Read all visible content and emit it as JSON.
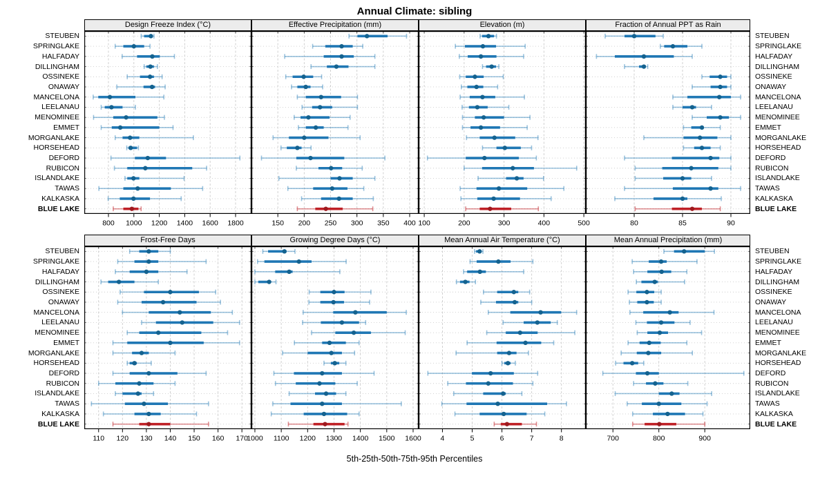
{
  "title": "Annual Climate: sibling",
  "caption": "5th-25th-50th-75th-95th Percentiles",
  "percentile_labels": [
    "5th",
    "25th",
    "50th",
    "75th",
    "95th"
  ],
  "highlight_site": "BLUE LAKE",
  "colors": {
    "series": "#1f77b4",
    "series_dot": "#14628f",
    "series_range": "rgba(31,119,180,0.45)",
    "highlight": "#bf2026",
    "highlight_dot": "#9e1a1f",
    "highlight_range": "rgba(191,32,38,0.5)",
    "grid": "#cbcbcb",
    "strip_bg": "#ececec",
    "border": "#000000"
  },
  "chart_data": {
    "type": "dotplot-interval",
    "note": "horizontal 5th-25th-50th-75th-95th percentile intervals per site; dot = median",
    "layout": {
      "rows": 2,
      "cols": 4,
      "grid": true,
      "legend_position": "none"
    },
    "sites": [
      "STEUBEN",
      "SPRINGLAKE",
      "HALFADAY",
      "DILLINGHAM",
      "OSSINEKE",
      "ONAWAY",
      "MANCELONA",
      "LEELANAU",
      "MENOMINEE",
      "EMMET",
      "MORGANLAKE",
      "HORSEHEAD",
      "DEFORD",
      "RUBICON",
      "ISLANDLAKE",
      "TAWAS",
      "KALKASKA",
      "BLUE LAKE"
    ],
    "panels": [
      {
        "title": "Design Freeze Index (°C)",
        "xlim": [
          610,
          1925
        ],
        "ticks": [
          800,
          1000,
          1200,
          1400,
          1600,
          1800
        ],
        "values": [
          [
            1058,
            1080,
            1134,
            1149,
            1158
          ],
          [
            853,
            917,
            1000,
            1081,
            1127
          ],
          [
            908,
            1025,
            1145,
            1204,
            1319
          ],
          [
            1081,
            1098,
            1130,
            1158,
            1185
          ],
          [
            948,
            1048,
            1127,
            1158,
            1222
          ],
          [
            866,
            1076,
            1143,
            1167,
            1246
          ],
          [
            680,
            720,
            811,
            1012,
            1236
          ],
          [
            743,
            771,
            824,
            911,
            1012
          ],
          [
            683,
            838,
            939,
            1185,
            1240
          ],
          [
            743,
            826,
            893,
            1200,
            1308
          ],
          [
            853,
            911,
            970,
            1043,
            1468
          ],
          [
            944,
            957,
            975,
            1025,
            1036
          ],
          [
            820,
            1008,
            1109,
            1253,
            1834
          ],
          [
            847,
            948,
            1090,
            1459,
            1572
          ],
          [
            930,
            948,
            997,
            1043,
            1395
          ],
          [
            725,
            917,
            1030,
            1291,
            1541
          ],
          [
            798,
            889,
            997,
            1127,
            1372
          ],
          [
            838,
            917,
            984,
            1036,
            1057
          ]
        ]
      },
      {
        "title": "Effective Precipitation (mm)",
        "xlim": [
          100,
          417
        ],
        "ticks": [
          150,
          200,
          250,
          300,
          350,
          400
        ],
        "values": [
          [
            285,
            301,
            319,
            358,
            394
          ],
          [
            216,
            240,
            271,
            292,
            311
          ],
          [
            163,
            237,
            271,
            294,
            334
          ],
          [
            213,
            243,
            261,
            284,
            334
          ],
          [
            165,
            178,
            199,
            217,
            233
          ],
          [
            176,
            187,
            203,
            212,
            235
          ],
          [
            187,
            203,
            232,
            270,
            301
          ],
          [
            196,
            215,
            230,
            253,
            301
          ],
          [
            181,
            193,
            208,
            248,
            287
          ],
          [
            189,
            203,
            222,
            237,
            283
          ],
          [
            141,
            171,
            200,
            246,
            306
          ],
          [
            156,
            167,
            187,
            195,
            213
          ],
          [
            119,
            185,
            212,
            276,
            353
          ],
          [
            185,
            227,
            251,
            272,
            310
          ],
          [
            152,
            250,
            267,
            292,
            334
          ],
          [
            169,
            217,
            253,
            282,
            313
          ],
          [
            195,
            232,
            266,
            292,
            331
          ],
          [
            187,
            221,
            241,
            273,
            330
          ]
        ]
      },
      {
        "title": "Elevation (m)",
        "xlim": [
          86,
          505
        ],
        "ticks": [
          100,
          200,
          300,
          400,
          500
        ],
        "values": [
          [
            240,
            245,
            261,
            275,
            281
          ],
          [
            178,
            202,
            247,
            280,
            353
          ],
          [
            188,
            209,
            242,
            281,
            349
          ],
          [
            246,
            255,
            269,
            280,
            287
          ],
          [
            189,
            204,
            227,
            249,
            298
          ],
          [
            193,
            208,
            231,
            248,
            284
          ],
          [
            190,
            214,
            246,
            278,
            351
          ],
          [
            195,
            212,
            233,
            259,
            312
          ],
          [
            196,
            227,
            249,
            300,
            365
          ],
          [
            196,
            216,
            242,
            290,
            358
          ],
          [
            206,
            239,
            276,
            328,
            385
          ],
          [
            246,
            281,
            302,
            342,
            369
          ],
          [
            108,
            204,
            251,
            337,
            381
          ],
          [
            200,
            245,
            322,
            375,
            482
          ],
          [
            235,
            305,
            332,
            349,
            399
          ],
          [
            190,
            231,
            287,
            358,
            450
          ],
          [
            192,
            233,
            274,
            340,
            418
          ],
          [
            204,
            239,
            265,
            318,
            386
          ]
        ]
      },
      {
        "title": "Fraction of Annual PPT as Rain",
        "xlim": [
          75,
          92
        ],
        "ticks": [
          80,
          85,
          90
        ],
        "values": [
          [
            77,
            79,
            80,
            82.2,
            83
          ],
          [
            82.7,
            83.1,
            84,
            85.5,
            87
          ],
          [
            76.1,
            78,
            81,
            84.1,
            86
          ],
          [
            79,
            80.5,
            81,
            81.2,
            81.4
          ],
          [
            87,
            87.8,
            88.9,
            89.6,
            90
          ],
          [
            86,
            87.9,
            88.9,
            89.6,
            90
          ],
          [
            84,
            85.5,
            88.8,
            90,
            91
          ],
          [
            84,
            85,
            86,
            86.4,
            88
          ],
          [
            86,
            87.5,
            88.9,
            89.8,
            91
          ],
          [
            85.1,
            85.9,
            87,
            87.2,
            88.9
          ],
          [
            81,
            85.1,
            86.8,
            88.6,
            90
          ],
          [
            85.1,
            86.2,
            87,
            87.9,
            88.9
          ],
          [
            79,
            83.9,
            87.9,
            88.8,
            90
          ],
          [
            80.1,
            82.9,
            85.9,
            88.7,
            90
          ],
          [
            80.1,
            83,
            85,
            85.9,
            88
          ],
          [
            79,
            84,
            87.9,
            88.7,
            91
          ],
          [
            78,
            82,
            85,
            85.5,
            89
          ],
          [
            80.1,
            83.9,
            86,
            87,
            88.9
          ]
        ]
      },
      {
        "title": "Frost-Free Days",
        "xlim": [
          104,
          174
        ],
        "ticks": [
          110,
          120,
          130,
          140,
          150,
          160,
          170
        ],
        "values": [
          [
            123,
            127,
            131,
            135,
            140
          ],
          [
            118,
            125,
            131,
            135,
            155
          ],
          [
            117,
            123,
            130,
            135,
            147
          ],
          [
            111,
            114,
            118.5,
            125,
            135
          ],
          [
            119,
            129,
            140,
            152,
            159
          ],
          [
            118,
            128,
            137,
            151,
            161
          ],
          [
            120,
            131,
            144,
            157,
            166
          ],
          [
            128,
            134,
            145,
            158,
            169
          ],
          [
            122,
            127,
            135,
            153,
            164
          ],
          [
            116,
            122,
            140,
            154,
            169
          ],
          [
            116,
            124,
            128,
            131,
            142
          ],
          [
            122,
            123,
            125,
            126,
            132
          ],
          [
            116,
            123,
            131,
            143,
            155
          ],
          [
            110,
            117,
            127,
            133,
            142
          ],
          [
            117,
            120,
            126.5,
            128,
            133
          ],
          [
            107,
            121,
            129,
            139,
            156
          ],
          [
            112,
            125,
            131,
            136,
            151
          ],
          [
            116,
            127,
            131,
            140,
            156
          ]
        ]
      },
      {
        "title": "Growing Degree Days (°C)",
        "xlim": [
          987,
          1621
        ],
        "ticks": [
          1000,
          1100,
          1200,
          1300,
          1400,
          1500,
          1600
        ],
        "values": [
          [
            1030,
            1050,
            1112,
            1120,
            1152
          ],
          [
            1010,
            1036,
            1167,
            1215,
            1346
          ],
          [
            1000,
            1077,
            1130,
            1143,
            1322
          ],
          [
            1000,
            1013,
            1054,
            1061,
            1080
          ],
          [
            1206,
            1248,
            1300,
            1340,
            1440
          ],
          [
            1205,
            1248,
            1298,
            1338,
            1435
          ],
          [
            1183,
            1297,
            1381,
            1500,
            1574
          ],
          [
            1181,
            1250,
            1330,
            1395,
            1420
          ],
          [
            1215,
            1305,
            1375,
            1440,
            1570
          ],
          [
            1150,
            1255,
            1283,
            1345,
            1395
          ],
          [
            1105,
            1200,
            1290,
            1330,
            1378
          ],
          [
            1262,
            1288,
            1303,
            1320,
            1345
          ],
          [
            1072,
            1148,
            1255,
            1330,
            1452
          ],
          [
            1078,
            1155,
            1245,
            1305,
            1388
          ],
          [
            1130,
            1228,
            1270,
            1308,
            1345
          ],
          [
            1068,
            1135,
            1255,
            1330,
            1555
          ],
          [
            1062,
            1185,
            1262,
            1350,
            1395
          ],
          [
            1127,
            1222,
            1266,
            1340,
            1353
          ]
        ]
      },
      {
        "title": "Mean Annual Air Temperature (°C)",
        "xlim": [
          3.2,
          8.82
        ],
        "ticks": [
          4,
          5,
          6,
          7,
          8
        ],
        "values": [
          [
            5.08,
            5.13,
            5.25,
            5.31,
            5.36
          ],
          [
            4.93,
            5.15,
            5.88,
            6.29,
            7.04
          ],
          [
            4.71,
            4.83,
            5.26,
            5.46,
            6.73
          ],
          [
            4.47,
            4.59,
            4.77,
            4.91,
            5.11
          ],
          [
            5.38,
            5.84,
            6.4,
            6.55,
            6.93
          ],
          [
            5.29,
            5.8,
            6.43,
            6.55,
            7.0
          ],
          [
            5.54,
            6.28,
            7.3,
            7.99,
            8.51
          ],
          [
            6.04,
            6.73,
            7.19,
            7.64,
            7.86
          ],
          [
            5.49,
            6.13,
            6.61,
            7.2,
            8.45
          ],
          [
            4.83,
            5.82,
            6.79,
            7.32,
            7.74
          ],
          [
            4.46,
            5.84,
            6.24,
            6.49,
            6.89
          ],
          [
            6.0,
            6.08,
            6.2,
            6.29,
            6.45
          ],
          [
            3.51,
            4.99,
            5.62,
            6.4,
            7.2
          ],
          [
            4.18,
            4.79,
            5.54,
            6.37,
            7.04
          ],
          [
            4.38,
            5.37,
            6.04,
            6.13,
            6.67
          ],
          [
            3.98,
            4.81,
            5.86,
            7.52,
            8.17
          ],
          [
            4.42,
            5.25,
            6.06,
            6.83,
            7.44
          ],
          [
            5.74,
            5.96,
            6.17,
            6.67,
            7.16
          ]
        ]
      },
      {
        "title": "Mean Annual Precipitation (mm)",
        "xlim": [
          641,
          999
        ],
        "ticks": [
          700,
          800,
          900
        ],
        "values": [
          [
            811,
            833,
            855,
            900,
            921
          ],
          [
            742,
            778,
            805,
            817,
            883
          ],
          [
            745,
            775,
            806,
            827,
            861
          ],
          [
            751,
            762,
            791,
            798,
            856
          ],
          [
            733,
            751,
            774,
            790,
            805
          ],
          [
            736,
            753,
            774,
            789,
            805
          ],
          [
            737,
            766,
            824,
            843,
            920
          ],
          [
            750,
            774,
            805,
            834,
            868
          ],
          [
            753,
            775,
            802,
            820,
            893
          ],
          [
            733,
            758,
            779,
            804,
            861
          ],
          [
            718,
            752,
            777,
            805,
            873
          ],
          [
            706,
            723,
            742,
            755,
            767
          ],
          [
            678,
            750,
            775,
            800,
            985
          ],
          [
            745,
            772,
            792,
            810,
            863
          ],
          [
            705,
            800,
            828,
            845,
            915
          ],
          [
            731,
            763,
            800,
            849,
            905
          ],
          [
            743,
            787,
            819,
            857,
            896
          ],
          [
            743,
            769,
            801,
            838,
            900
          ]
        ]
      }
    ]
  }
}
